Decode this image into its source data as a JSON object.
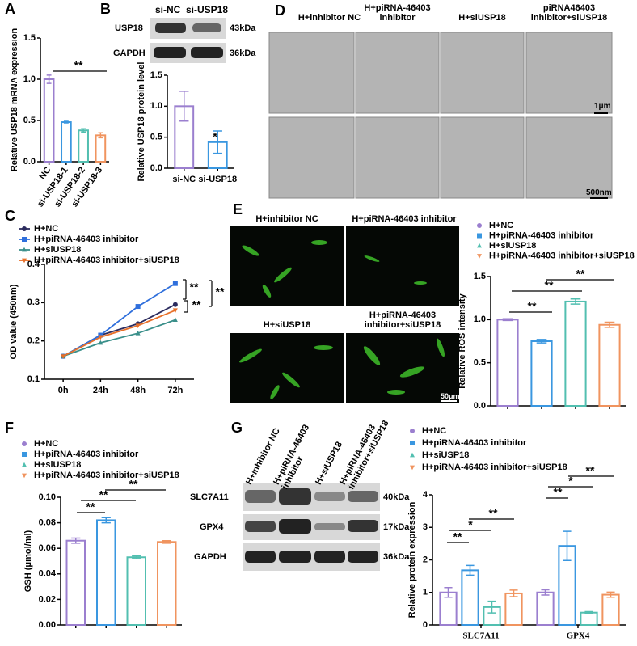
{
  "figure": {
    "panel_labels": [
      "A",
      "B",
      "C",
      "D",
      "E",
      "F",
      "G"
    ],
    "blot_B": {
      "lanes": [
        "si-NC",
        "si-USP18"
      ],
      "rows": [
        {
          "protein": "USP18",
          "size": "43kDa"
        },
        {
          "protein": "GAPDH",
          "size": "36kDa"
        }
      ]
    },
    "tem_D": {
      "columns": [
        "H+inhibitor NC",
        "H+piRNA-46403 inhibitor",
        "H+siUSP18",
        "piRNA46403 inhibitor+siUSP18"
      ],
      "scale_bars": [
        "1μm",
        "500nm"
      ]
    },
    "fluorescence_E": {
      "labels": [
        "H+inhibitor NC",
        "H+piRNA-46403 inhibitor",
        "H+siUSP18",
        "H+piRNA-46403 inhibitor+siUSP18"
      ],
      "scale_bar": "50μm"
    },
    "blot_G": {
      "lanes": [
        "H+inhibitor NC",
        "H+piRNA-46403 inhibitor",
        "H+siUSP18",
        "H+piRNA-46403 inhibitor+siUSP18"
      ],
      "rows": [
        {
          "protein": "SLC7A11",
          "size": "40kDa"
        },
        {
          "protein": "GPX4",
          "size": "17kDa"
        },
        {
          "protein": "GAPDH",
          "size": "36kDa"
        }
      ]
    }
  },
  "chart_data": [
    {
      "type": "bar",
      "ylabel": "Relative USP18 mRNA expression",
      "categories": [
        "NC",
        "si-USP18-1",
        "si-USP18-2",
        "si-USP18-3"
      ],
      "values": [
        1.0,
        0.48,
        0.38,
        0.32
      ],
      "errors": [
        0.05,
        0.01,
        0.02,
        0.03
      ],
      "colors": [
        "#9b7fcf",
        "#3a97e0",
        "#52bfb0",
        "#f0945f"
      ],
      "ylim": [
        0,
        1.5
      ],
      "yticks": [
        {
          "value": 0,
          "label": "0.0"
        },
        0.5,
        {
          "value": 1,
          "label": "1.0"
        },
        1.5
      ],
      "annotations": [
        "**"
      ]
    },
    {
      "type": "bar",
      "ylabel": "Relative USP18 protein level",
      "categories": [
        "si-NC",
        "si-USP18"
      ],
      "values": [
        1.0,
        0.42
      ],
      "errors": [
        0.24,
        0.18
      ],
      "colors": [
        "#9b7fcf",
        "#3a97e0"
      ],
      "ylim": [
        0,
        1.5
      ],
      "yticks": [
        {
          "value": 0,
          "label": "0.0"
        },
        0.5,
        {
          "value": 1,
          "label": "1.0"
        },
        1.5
      ],
      "annotations": [
        "*"
      ]
    },
    {
      "type": "line",
      "ylabel": "OD value (450nm)",
      "categories": [
        "0h",
        "24h",
        "48h",
        "72h"
      ],
      "series": [
        {
          "name": "H+NC",
          "color": "#2b2b5e",
          "values": [
            0.16,
            0.215,
            0.245,
            0.295
          ]
        },
        {
          "name": "H+piRNA-46403 inhibitor",
          "color": "#2f6fdc",
          "values": [
            0.16,
            0.215,
            0.29,
            0.35
          ]
        },
        {
          "name": "H+siUSP18",
          "color": "#3a8f8a",
          "values": [
            0.16,
            0.195,
            0.22,
            0.255
          ]
        },
        {
          "name": "H+piRNA-46403 inhibitor+siUSP18",
          "color": "#e8702a",
          "values": [
            0.16,
            0.21,
            0.24,
            0.28
          ]
        }
      ],
      "ylim": [
        0.1,
        0.4
      ],
      "yticks": [
        0.1,
        0.2,
        0.3,
        0.4
      ],
      "annotations": [
        "**",
        "**",
        "**"
      ]
    },
    {
      "type": "bar",
      "ylabel": "Relative ROS intensity",
      "series": [
        {
          "name": "H+NC",
          "color": "#9b7fcf",
          "values": [
            1.0
          ],
          "errors": [
            0.01
          ]
        },
        {
          "name": "H+piRNA-46403 inhibitor",
          "color": "#3a97e0",
          "values": [
            0.75
          ],
          "errors": [
            0.02
          ]
        },
        {
          "name": "H+siUSP18",
          "color": "#52bfb0",
          "values": [
            1.21
          ],
          "errors": [
            0.03
          ]
        },
        {
          "name": "H+piRNA-46403 inhibitor+siUSP18",
          "color": "#f0945f",
          "values": [
            0.94
          ],
          "errors": [
            0.03
          ]
        }
      ],
      "ylim": [
        0,
        1.5
      ],
      "yticks": [
        {
          "value": 0,
          "label": "0.0"
        },
        0.5,
        {
          "value": 1,
          "label": "1.0"
        },
        1.5
      ],
      "annotations": [
        "**",
        "**",
        "**"
      ]
    },
    {
      "type": "bar",
      "ylabel": "GSH (μmol/ml)",
      "series": [
        {
          "name": "H+NC",
          "color": "#9b7fcf",
          "values": [
            0.066
          ],
          "errors": [
            0.002
          ]
        },
        {
          "name": "H+piRNA-46403 inhibitor",
          "color": "#3a97e0",
          "values": [
            0.082
          ],
          "errors": [
            0.002
          ]
        },
        {
          "name": "H+siUSP18",
          "color": "#52bfb0",
          "values": [
            0.053
          ],
          "errors": [
            0.001
          ]
        },
        {
          "name": "H+piRNA-46403 inhibitor+siUSP18",
          "color": "#f0945f",
          "values": [
            0.065
          ],
          "errors": [
            0.001
          ]
        }
      ],
      "ylim": [
        0,
        0.1
      ],
      "yticks": [
        {
          "value": 0,
          "label": "0.00"
        },
        {
          "value": 0.02,
          "label": "0.02"
        },
        {
          "value": 0.04,
          "label": "0.04"
        },
        {
          "value": 0.06,
          "label": "0.06"
        },
        {
          "value": 0.08,
          "label": "0.08"
        },
        {
          "value": 0.1,
          "label": "0.10"
        }
      ],
      "annotations": [
        "**",
        "**",
        "**"
      ]
    },
    {
      "type": "bar",
      "ylabel": "Relative protein expression",
      "categories": [
        "SLC7A11",
        "GPX4"
      ],
      "series": [
        {
          "name": "H+NC",
          "color": "#9b7fcf",
          "values": [
            1.0,
            1.0
          ],
          "errors": [
            0.15,
            0.08
          ]
        },
        {
          "name": "H+piRNA-46403 inhibitor",
          "color": "#3a97e0",
          "values": [
            1.68,
            2.43
          ],
          "errors": [
            0.15,
            0.45
          ]
        },
        {
          "name": "H+siUSP18",
          "color": "#52bfb0",
          "values": [
            0.55,
            0.38
          ],
          "errors": [
            0.18,
            0.03
          ]
        },
        {
          "name": "H+piRNA-46403 inhibitor+siUSP18",
          "color": "#f0945f",
          "values": [
            0.97,
            0.93
          ],
          "errors": [
            0.1,
            0.08
          ]
        }
      ],
      "ylim": [
        0,
        4
      ],
      "yticks": [
        0,
        1,
        2,
        3,
        4
      ],
      "annotations": [
        "**",
        "*",
        "**",
        "**",
        "*",
        "**"
      ]
    }
  ]
}
